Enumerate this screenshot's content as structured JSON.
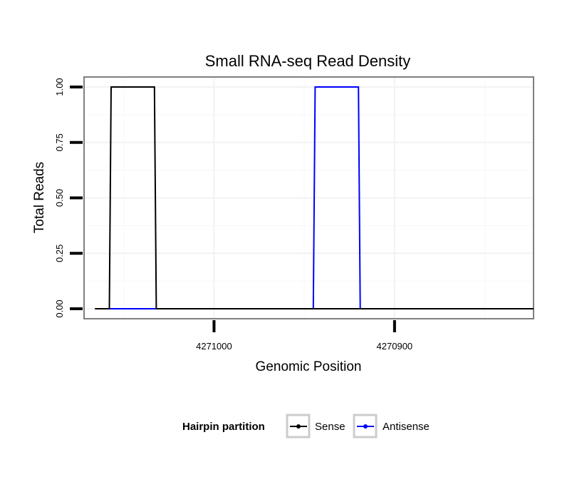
{
  "chart_data": {
    "type": "line",
    "title": "Small RNA-seq Read Density",
    "xlabel": "Genomic Position",
    "ylabel": "Total Reads",
    "x_reversed": true,
    "xlim": [
      4271072,
      4270823
    ],
    "ylim": [
      -0.045,
      1.045
    ],
    "x_ticks": [
      {
        "value": 4271000,
        "label": "4271000"
      },
      {
        "value": 4270900,
        "label": "4270900"
      }
    ],
    "y_ticks": [
      {
        "value": 0.0,
        "label": "0.00"
      },
      {
        "value": 0.25,
        "label": "0.25"
      },
      {
        "value": 0.5,
        "label": "0.50"
      },
      {
        "value": 0.75,
        "label": "0.75"
      },
      {
        "value": 1.0,
        "label": "1.00"
      }
    ],
    "grid": true,
    "legend": {
      "title": "Hairpin partition",
      "position": "bottom",
      "entries": [
        "Sense",
        "Antisense"
      ]
    },
    "series": [
      {
        "name": "Sense",
        "color": "#000000",
        "x": [
          4271066,
          4271058,
          4271057,
          4271033,
          4271032,
          4270823
        ],
        "y": [
          0,
          0,
          1,
          1,
          0,
          0
        ]
      },
      {
        "name": "Antisense",
        "color": "#0000ff",
        "x": [
          4271058,
          4270945,
          4270944,
          4270920,
          4270919,
          4270826
        ],
        "y": [
          0,
          0,
          1,
          1,
          0,
          0
        ]
      }
    ]
  }
}
